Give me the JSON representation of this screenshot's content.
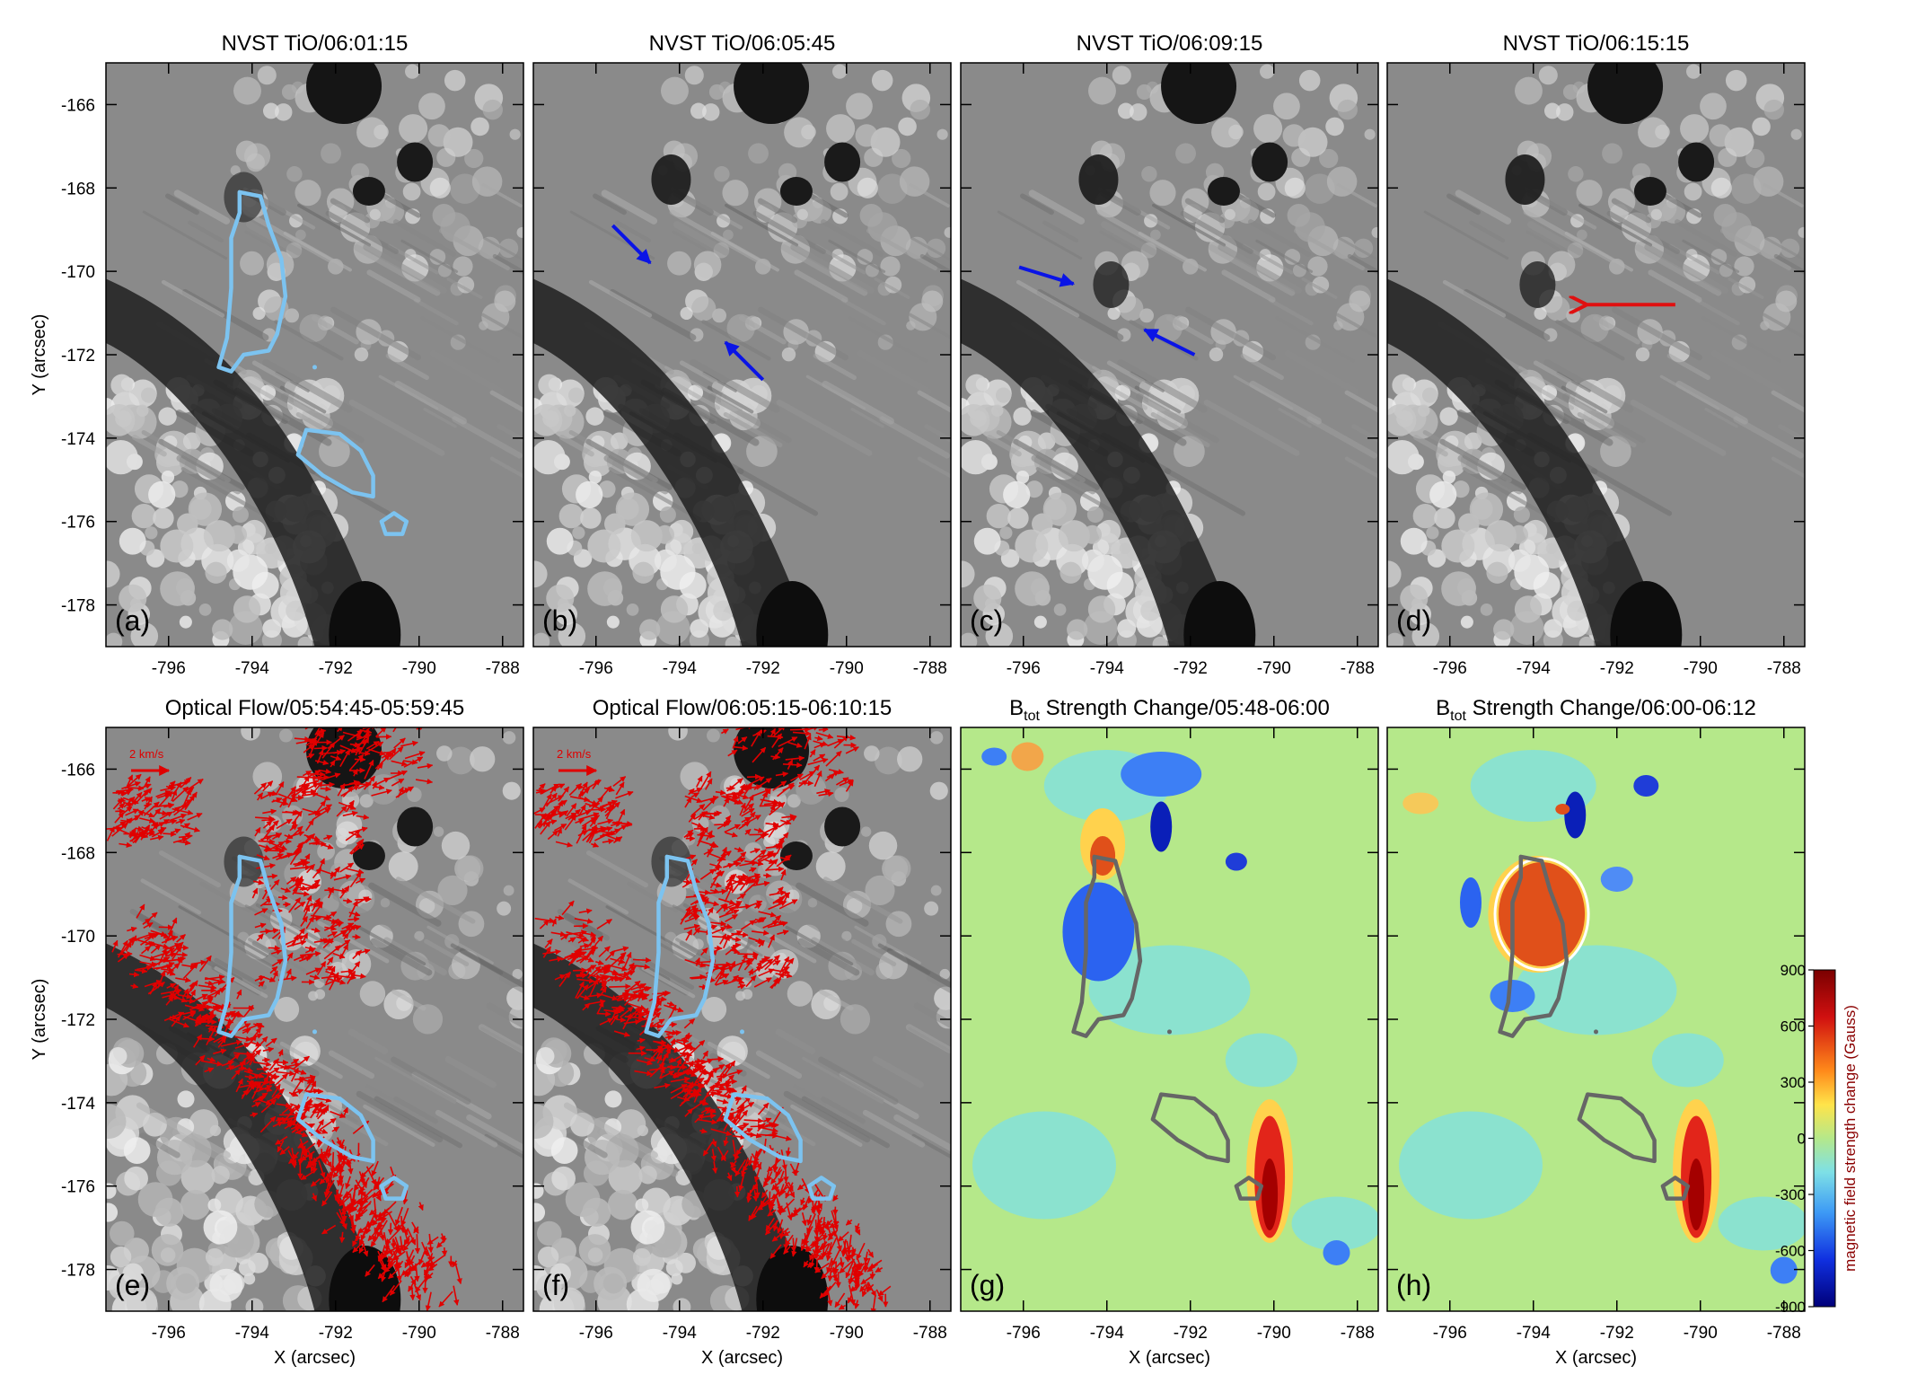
{
  "figure": {
    "panels": [
      {
        "id": "a",
        "title_main": "NVST TiO/06:01:15",
        "title_sub": "",
        "title_rest": "",
        "label": "(a)",
        "kind": "tio",
        "contours": "light",
        "arrows": []
      },
      {
        "id": "b",
        "title_main": "NVST TiO/06:05:45",
        "title_sub": "",
        "title_rest": "",
        "label": "(b)",
        "kind": "tio",
        "contours": "none",
        "arrows": [
          {
            "x1": -795.6,
            "y1": -168.9,
            "x2": -794.7,
            "y2": -169.8,
            "color": "blue"
          },
          {
            "x1": -792.0,
            "y1": -172.6,
            "x2": -792.9,
            "y2": -171.7,
            "color": "blue"
          }
        ]
      },
      {
        "id": "c",
        "title_main": "NVST TiO/06:09:15",
        "title_sub": "",
        "title_rest": "",
        "label": "(c)",
        "kind": "tio",
        "contours": "none",
        "arrows": [
          {
            "x1": -796.1,
            "y1": -169.9,
            "x2": -794.8,
            "y2": -170.3,
            "color": "blue"
          },
          {
            "x1": -791.9,
            "y1": -172.0,
            "x2": -793.1,
            "y2": -171.4,
            "color": "blue"
          }
        ]
      },
      {
        "id": "d",
        "title_main": "NVST TiO/06:15:15",
        "title_sub": "",
        "title_rest": "",
        "label": "(d)",
        "kind": "tio",
        "contours": "none",
        "arrows": [
          {
            "x1": -790.6,
            "y1": -170.8,
            "x2": -792.8,
            "y2": -170.8,
            "color": "red"
          }
        ]
      },
      {
        "id": "e",
        "title_main": "Optical Flow/05:54:45-05:59:45",
        "title_sub": "",
        "title_rest": "",
        "label": "(e)",
        "kind": "flow",
        "contours": "light",
        "arrows": [],
        "scale_label": "2 km/s"
      },
      {
        "id": "f",
        "title_main": "Optical Flow/06:05:15-06:10:15",
        "title_sub": "",
        "title_rest": "",
        "label": "(f)",
        "kind": "flow",
        "contours": "light",
        "arrows": [],
        "scale_label": "2 km/s"
      },
      {
        "id": "g",
        "title_main": "B",
        "title_sub": "tot",
        "title_rest": " Strength Change/05:48-06:00",
        "label": "(g)",
        "kind": "btot",
        "contours": "dark",
        "arrows": []
      },
      {
        "id": "h",
        "title_main": "B",
        "title_sub": "tot",
        "title_rest": " Strength Change/06:00-06:12",
        "label": "(h)",
        "kind": "btot",
        "contours": "dark",
        "arrows": []
      }
    ],
    "xaxis": {
      "label": "X (arcsec)",
      "range": [
        -797.5,
        -787.5
      ],
      "ticks": [
        -796,
        -794,
        -792,
        -790,
        -788
      ]
    },
    "yaxis": {
      "label": "Y (arcsec)",
      "range": [
        -179,
        -165
      ],
      "ticks": [
        -166,
        -168,
        -170,
        -172,
        -174,
        -176,
        -178
      ]
    },
    "colorbar": {
      "label": "magnetic field strength change (Gauss)",
      "range": [
        -900,
        900
      ],
      "ticks": [
        900,
        600,
        300,
        0,
        -300,
        -600,
        -900
      ]
    },
    "colors": {
      "contour_light": "#7cc3f0",
      "contour_dark": "#666666",
      "arrow_blue": "#0a14e6",
      "arrow_red": "#e01010",
      "flow": "#e00000"
    }
  }
}
